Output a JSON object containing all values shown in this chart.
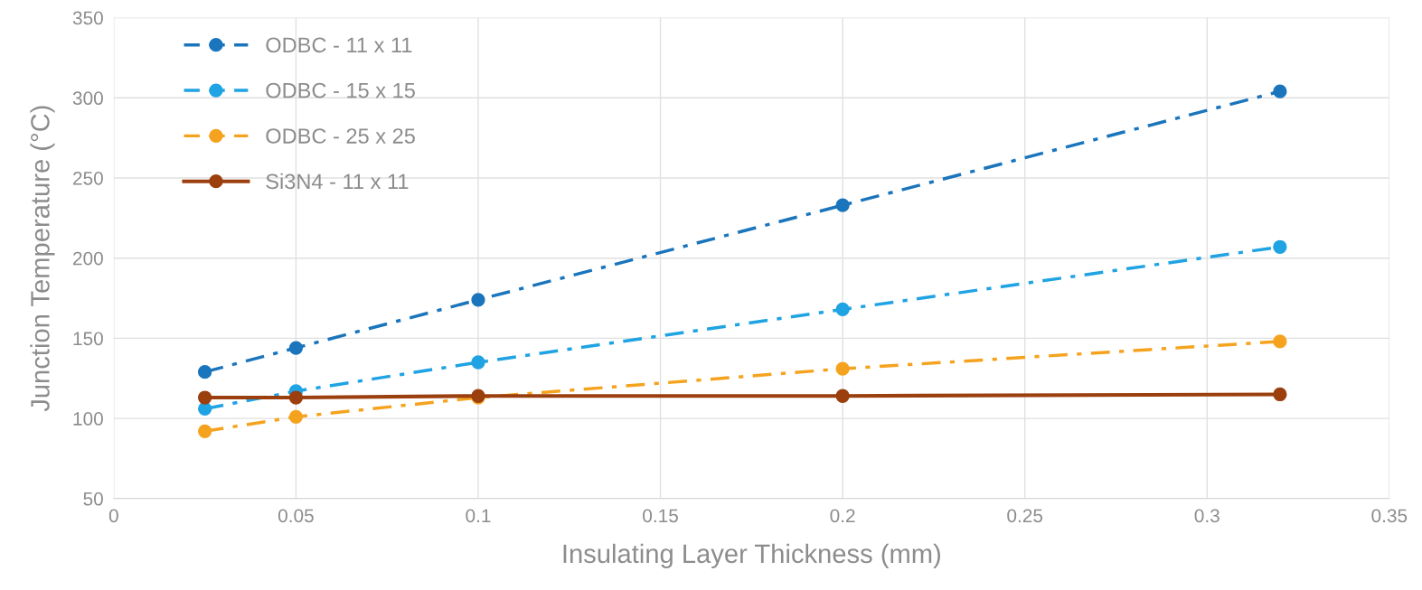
{
  "chart_data": {
    "type": "line",
    "xlabel": "Insulating Layer Thickness (mm)",
    "ylabel": "Junction Temperature (°C)",
    "x": [
      0.025,
      0.05,
      0.1,
      0.2,
      0.32
    ],
    "series": [
      {
        "name": "ODBC - 11 x 11",
        "color": "#1a75bc",
        "marker": "circle",
        "line_style": "dashed",
        "values": [
          129,
          144,
          174,
          233,
          304
        ]
      },
      {
        "name": "ODBC - 15 x 15",
        "color": "#1fa3e3",
        "marker": "circle",
        "line_style": "dashed",
        "values": [
          106,
          117,
          135,
          168,
          207
        ]
      },
      {
        "name": "ODBC - 25 x 25",
        "color": "#f5a31f",
        "marker": "circle",
        "line_style": "dashed",
        "values": [
          92,
          101,
          113,
          131,
          148
        ]
      },
      {
        "name": "Si3N4 - 11 x 11",
        "color": "#9b3f0f",
        "marker": "circle",
        "line_style": "solid",
        "values": [
          113,
          113,
          114,
          114,
          115
        ]
      }
    ],
    "xlim": [
      0,
      0.35
    ],
    "xticks": [
      0,
      0.05,
      0.1,
      0.15,
      0.2,
      0.25,
      0.3,
      0.35
    ],
    "ylim": [
      50,
      350
    ],
    "yticks": [
      50,
      100,
      150,
      200,
      250,
      300,
      350
    ],
    "grid": true,
    "legend": "top left"
  }
}
